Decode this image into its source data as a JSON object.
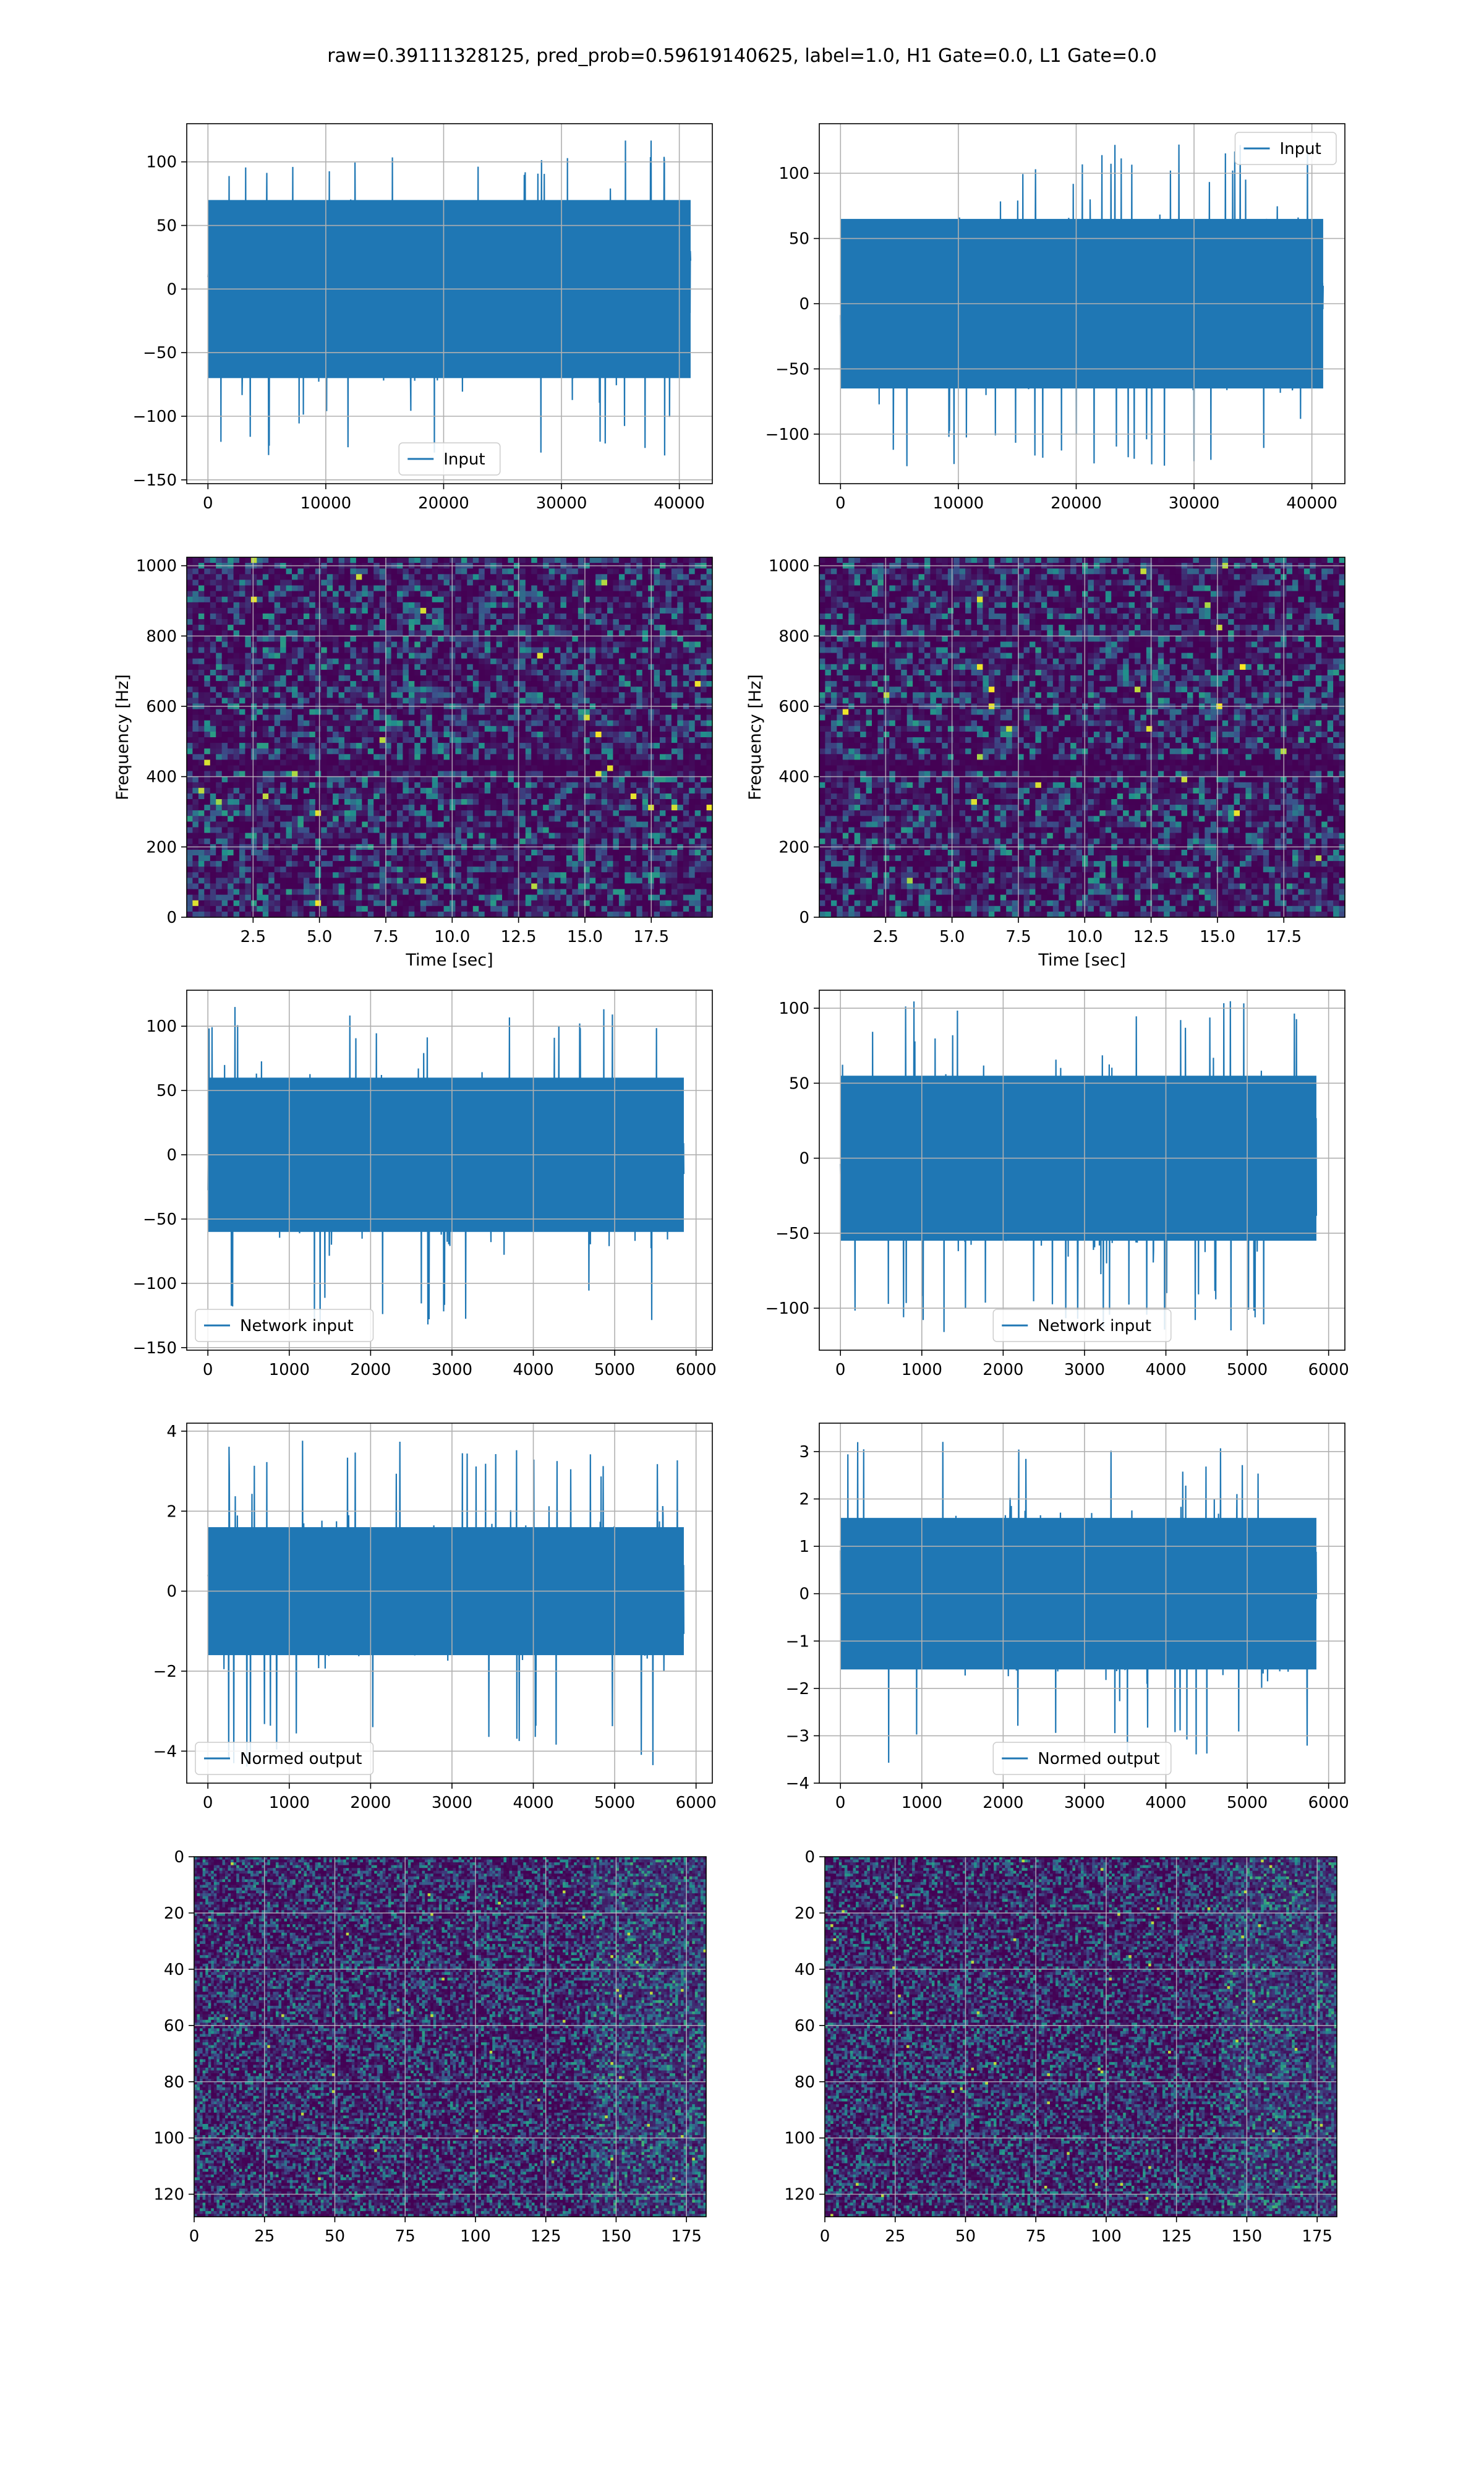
{
  "figure": {
    "suptitle": "raw=0.39111328125, pred_prob=0.59619140625, label=1.0, H1 Gate=0.0, L1 Gate=0.0",
    "colors": {
      "line": "#1f77b4",
      "grid": "#b0b0b0",
      "viridis_low": "#440154",
      "viridis_high": "#fde725"
    }
  },
  "chart_data": [
    {
      "id": "h1-input",
      "type": "line",
      "series": [
        {
          "name": "Input"
        }
      ],
      "legend": "lower center",
      "xlim": [
        -1800,
        42800
      ],
      "ylim": [
        -153,
        130
      ],
      "xticks": [
        0,
        10000,
        20000,
        30000,
        40000
      ],
      "yticks": [
        -150,
        -100,
        -50,
        0,
        50,
        100
      ],
      "x_extent": [
        0,
        40960
      ],
      "y_envelope": {
        "typical": 70,
        "peak_max": 117,
        "peak_min": -131
      },
      "grid": true
    },
    {
      "id": "l1-input",
      "type": "line",
      "series": [
        {
          "name": "Input"
        }
      ],
      "legend": "upper right",
      "xlim": [
        -1800,
        42800
      ],
      "ylim": [
        -138,
        138
      ],
      "xticks": [
        0,
        10000,
        20000,
        30000,
        40000
      ],
      "yticks": [
        -100,
        -50,
        0,
        50,
        100
      ],
      "x_extent": [
        0,
        40960
      ],
      "y_envelope": {
        "typical": 65,
        "peak_max": 122,
        "peak_min": -125
      },
      "grid": true
    },
    {
      "id": "h1-spectrogram",
      "type": "heatmap",
      "xlabel": "Time [sec]",
      "ylabel": "Frequency [Hz]",
      "xlim": [
        0,
        19.8
      ],
      "ylim": [
        0,
        1024
      ],
      "xticks": [
        2.5,
        5.0,
        7.5,
        10.0,
        12.5,
        15.0,
        17.5
      ],
      "yticks": [
        0,
        200,
        400,
        600,
        800,
        1000
      ],
      "grid": true
    },
    {
      "id": "l1-spectrogram",
      "type": "heatmap",
      "xlabel": "Time [sec]",
      "ylabel": "Frequency [Hz]",
      "xlim": [
        0,
        19.8
      ],
      "ylim": [
        0,
        1024
      ],
      "xticks": [
        2.5,
        5.0,
        7.5,
        10.0,
        12.5,
        15.0,
        17.5
      ],
      "yticks": [
        0,
        200,
        400,
        600,
        800,
        1000
      ],
      "grid": true
    },
    {
      "id": "h1-network-input",
      "type": "line",
      "series": [
        {
          "name": "Network input"
        }
      ],
      "legend": "lower left",
      "xlim": [
        -260,
        6200
      ],
      "ylim": [
        -152,
        128
      ],
      "xticks": [
        0,
        1000,
        2000,
        3000,
        4000,
        5000,
        6000
      ],
      "yticks": [
        -150,
        -100,
        -50,
        0,
        50,
        100
      ],
      "x_extent": [
        0,
        5850
      ],
      "y_envelope": {
        "typical": 60,
        "peak_max": 117,
        "peak_min": -140
      },
      "grid": true
    },
    {
      "id": "l1-network-input",
      "type": "line",
      "series": [
        {
          "name": "Network input"
        }
      ],
      "legend": "lower center",
      "xlim": [
        -260,
        6200
      ],
      "ylim": [
        -128,
        112
      ],
      "xticks": [
        0,
        1000,
        2000,
        3000,
        4000,
        5000,
        6000
      ],
      "yticks": [
        -100,
        -50,
        0,
        50,
        100
      ],
      "x_extent": [
        0,
        5850
      ],
      "y_envelope": {
        "typical": 55,
        "peak_max": 105,
        "peak_min": -117
      },
      "grid": true
    },
    {
      "id": "h1-normed-output",
      "type": "line",
      "series": [
        {
          "name": "Normed output"
        }
      ],
      "legend": "lower left",
      "xlim": [
        -260,
        6200
      ],
      "ylim": [
        -4.8,
        4.2
      ],
      "xticks": [
        0,
        1000,
        2000,
        3000,
        4000,
        5000,
        6000
      ],
      "yticks": [
        -4,
        -2,
        0,
        2,
        4
      ],
      "x_extent": [
        0,
        5850
      ],
      "y_envelope": {
        "typical": 1.6,
        "peak_max": 3.8,
        "peak_min": -4.4
      },
      "grid": true
    },
    {
      "id": "l1-normed-output",
      "type": "line",
      "series": [
        {
          "name": "Normed output"
        }
      ],
      "legend": "lower center",
      "xlim": [
        -260,
        6200
      ],
      "ylim": [
        -4.0,
        3.6
      ],
      "xticks": [
        0,
        1000,
        2000,
        3000,
        4000,
        5000,
        6000
      ],
      "yticks": [
        -4,
        -3,
        -2,
        -1,
        0,
        1,
        2,
        3
      ],
      "x_extent": [
        0,
        5850
      ],
      "y_envelope": {
        "typical": 1.6,
        "peak_max": 3.3,
        "peak_min": -3.7
      },
      "grid": true
    },
    {
      "id": "h1-matrix",
      "type": "heatmap",
      "xlim": [
        0,
        182
      ],
      "ylim": [
        128,
        0
      ],
      "xticks": [
        0,
        25,
        50,
        75,
        100,
        125,
        150,
        175
      ],
      "yticks": [
        0,
        20,
        40,
        60,
        80,
        100,
        120
      ],
      "grid": true
    },
    {
      "id": "l1-matrix",
      "type": "heatmap",
      "xlim": [
        0,
        182
      ],
      "ylim": [
        128,
        0
      ],
      "xticks": [
        0,
        25,
        50,
        75,
        100,
        125,
        150,
        175
      ],
      "yticks": [
        0,
        20,
        40,
        60,
        80,
        100,
        120
      ],
      "grid": true
    }
  ]
}
